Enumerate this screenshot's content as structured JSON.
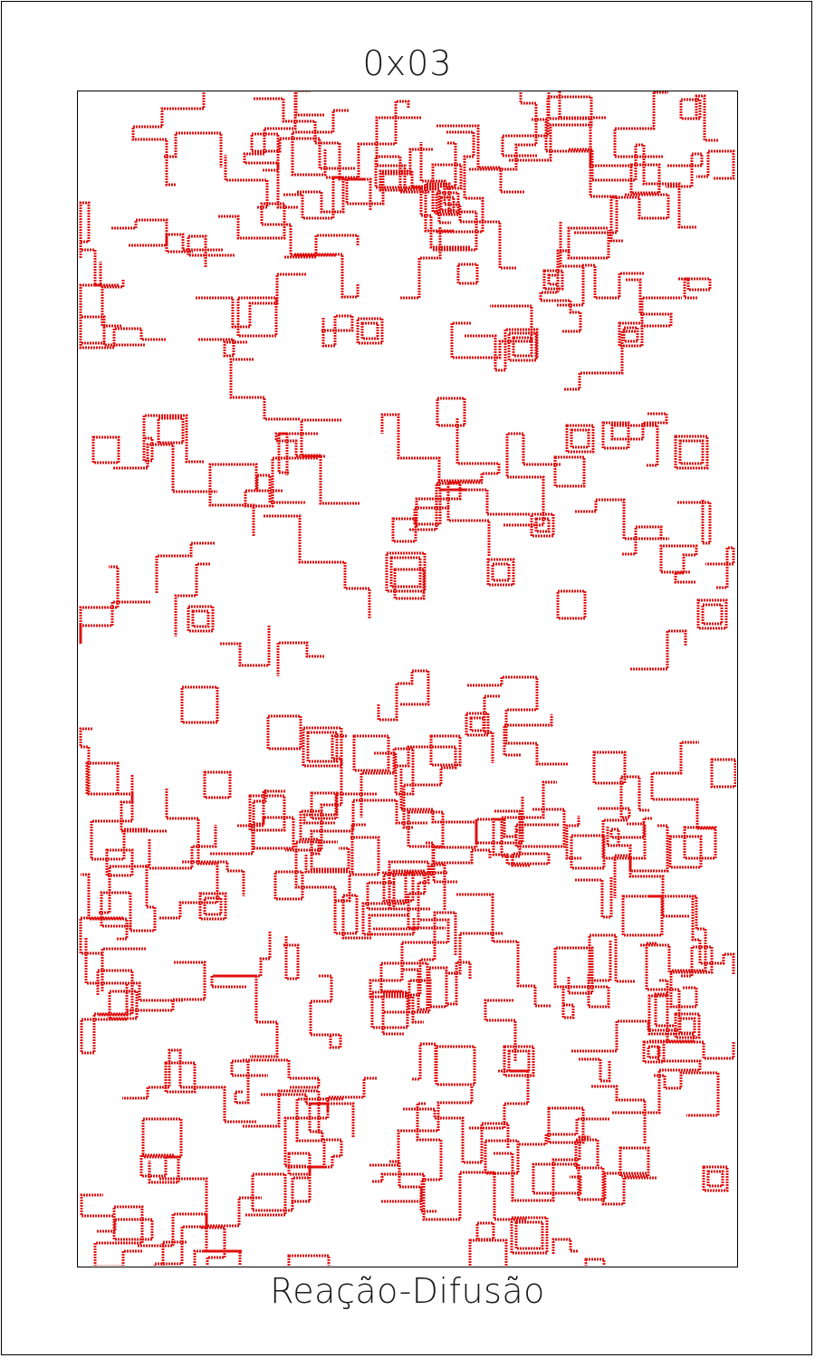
{
  "title": "0x03",
  "caption": "Reação-Difusão",
  "colors": {
    "pattern_stroke": "#e01010",
    "background": "#ffffff",
    "frame": "#000000"
  }
}
